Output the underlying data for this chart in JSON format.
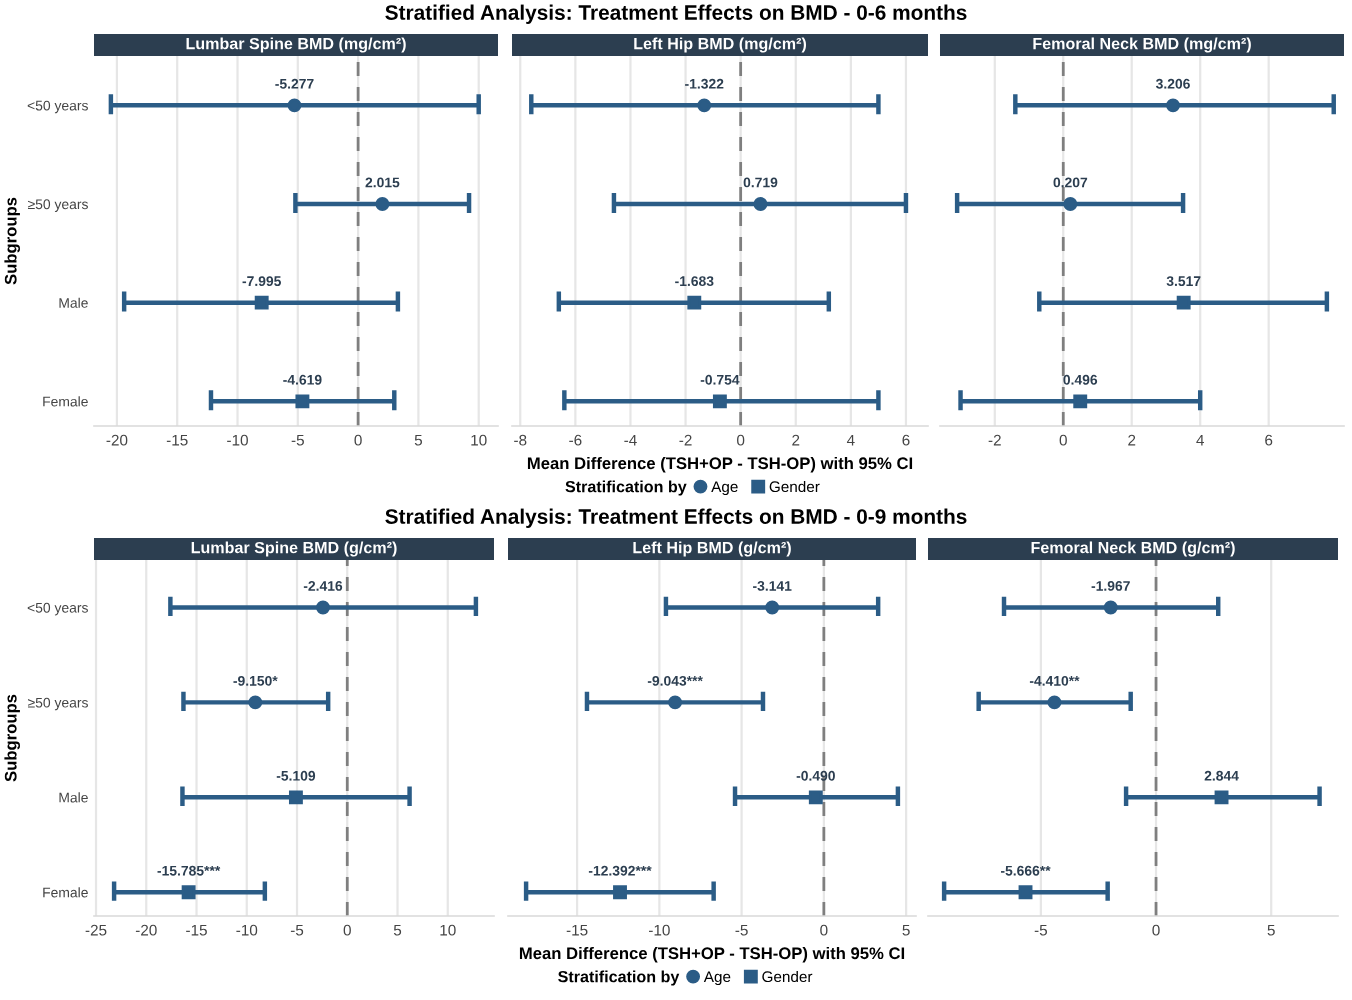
{
  "chart_data": [
    {
      "type": "scatter",
      "orientation": "horizontal",
      "subtitle": "Lumbar Spine BMD (mg/cm²)",
      "ylabel": "Subgroups",
      "categories": [
        "<50 years",
        "≥50 years",
        "Male",
        "Female"
      ],
      "xlim": [
        -21.9,
        11.6
      ],
      "xticks": [
        -20,
        -15,
        -10,
        -5,
        0,
        5,
        10
      ],
      "grid": "x",
      "ref_lines": [
        {
          "axis": "x",
          "value": 0,
          "color": "#7f7f7f",
          "line_style": "dashed"
        }
      ],
      "series": [
        {
          "color": "#2b5c86",
          "marker": "circle",
          "values": [
            -5.277,
            2.015,
            null,
            null
          ],
          "errors": [
            [
              -20.5,
              10.0
            ],
            [
              -5.2,
              9.2
            ],
            null,
            null
          ],
          "value_labels": [
            "-5.277",
            "2.015",
            null,
            null
          ]
        },
        {
          "color": "#2b5c86",
          "marker": "square",
          "values": [
            null,
            null,
            -7.995,
            -4.619
          ],
          "errors": [
            null,
            null,
            [
              -19.4,
              3.3
            ],
            [
              -12.2,
              3.0
            ]
          ],
          "value_labels": [
            null,
            null,
            "-7.995",
            "-4.619"
          ]
        }
      ]
    },
    {
      "type": "scatter",
      "orientation": "horizontal",
      "title": "Stratified Analysis: Treatment Effects on BMD - 0-6 months",
      "subtitle": "Left Hip BMD (mg/cm²)",
      "xlabel": "Mean Difference (TSH+OP - TSH-OP) with 95% CI",
      "legend": "bottom",
      "legend_title": "Stratification by",
      "tick_labels": "x",
      "categories": [
        null,
        null,
        null,
        null
      ],
      "xlim": [
        -8.3,
        6.8
      ],
      "xticks": [
        -8,
        -6,
        -4,
        -2,
        0,
        2,
        4,
        6
      ],
      "grid": "x",
      "ref_lines": [
        {
          "axis": "x",
          "value": 0,
          "color": "#7f7f7f",
          "line_style": "dashed"
        }
      ],
      "series": [
        {
          "name": "Age",
          "color": "#2b5c86",
          "marker": "circle",
          "values": [
            -1.322,
            0.719,
            null,
            null
          ],
          "errors": [
            [
              -7.6,
              5.0
            ],
            [
              -4.6,
              6.0
            ],
            null,
            null
          ],
          "value_labels": [
            "-1.322",
            "0.719",
            null,
            null
          ]
        },
        {
          "name": "Gender",
          "color": "#2b5c86",
          "marker": "square",
          "values": [
            null,
            null,
            -1.683,
            -0.754
          ],
          "errors": [
            null,
            null,
            [
              -6.6,
              3.2
            ],
            [
              -6.4,
              5.0
            ]
          ],
          "value_labels": [
            null,
            null,
            "-1.683",
            "-0.754"
          ]
        }
      ]
    },
    {
      "type": "scatter",
      "orientation": "horizontal",
      "subtitle": "Femoral Neck BMD (mg/cm²)",
      "tick_labels": "x",
      "categories": [
        null,
        null,
        null,
        null
      ],
      "xlim": [
        -3.6,
        8.2
      ],
      "xticks": [
        -2,
        0,
        2,
        4,
        6
      ],
      "grid": "x",
      "ref_lines": [
        {
          "axis": "x",
          "value": 0,
          "color": "#7f7f7f",
          "line_style": "dashed"
        }
      ],
      "series": [
        {
          "color": "#2b5c86",
          "marker": "circle",
          "values": [
            3.206,
            0.207,
            null,
            null
          ],
          "errors": [
            [
              -1.4,
              7.9
            ],
            [
              -3.1,
              3.5
            ],
            null,
            null
          ],
          "value_labels": [
            "3.206",
            "0.207",
            null,
            null
          ]
        },
        {
          "color": "#2b5c86",
          "marker": "square",
          "values": [
            null,
            null,
            3.517,
            0.496
          ],
          "errors": [
            null,
            null,
            [
              -0.7,
              7.7
            ],
            [
              -3.0,
              4.0
            ]
          ],
          "value_labels": [
            null,
            null,
            "3.517",
            "0.496"
          ]
        }
      ]
    },
    {
      "type": "scatter",
      "orientation": "horizontal",
      "subtitle": "Lumbar Spine BMD (g/cm²)",
      "ylabel": "Subgroups",
      "categories": [
        "<50 years",
        "≥50 years",
        "Male",
        "Female"
      ],
      "xlim": [
        -25.2,
        14.6
      ],
      "xticks": [
        -25,
        -20,
        -15,
        -10,
        -5,
        0,
        5,
        10
      ],
      "grid": "x",
      "ref_lines": [
        {
          "axis": "x",
          "value": 0,
          "color": "#7f7f7f",
          "line_style": "dashed"
        }
      ],
      "series": [
        {
          "color": "#2b5c86",
          "marker": "circle",
          "values": [
            -2.416,
            -9.15,
            null,
            null
          ],
          "errors": [
            [
              -17.6,
              12.8
            ],
            [
              -16.3,
              -1.9
            ],
            null,
            null
          ],
          "value_labels": [
            "-2.416",
            "-9.150*",
            null,
            null
          ]
        },
        {
          "color": "#2b5c86",
          "marker": "square",
          "values": [
            null,
            null,
            -5.109,
            -15.785
          ],
          "errors": [
            null,
            null,
            [
              -16.4,
              6.2
            ],
            [
              -23.2,
              -8.2
            ]
          ],
          "value_labels": [
            null,
            null,
            "-5.109",
            "-15.785***"
          ]
        }
      ]
    },
    {
      "type": "scatter",
      "orientation": "horizontal",
      "title": "Stratified Analysis: Treatment Effects on BMD - 0-9 months",
      "subtitle": "Left Hip BMD (g/cm²)",
      "xlabel": "Mean Difference (TSH+OP - TSH-OP) with 95% CI",
      "legend": "bottom",
      "legend_title": "Stratification by",
      "tick_labels": "x",
      "categories": [
        null,
        null,
        null,
        null
      ],
      "xlim": [
        -19.2,
        5.6
      ],
      "xticks": [
        -15,
        -10,
        -5,
        0,
        5
      ],
      "grid": "x",
      "ref_lines": [
        {
          "axis": "x",
          "value": 0,
          "color": "#7f7f7f",
          "line_style": "dashed"
        }
      ],
      "series": [
        {
          "name": "Age",
          "color": "#2b5c86",
          "marker": "circle",
          "values": [
            -3.141,
            -9.043,
            null,
            null
          ],
          "errors": [
            [
              -9.6,
              3.3
            ],
            [
              -14.4,
              -3.7
            ],
            null,
            null
          ],
          "value_labels": [
            "-3.141",
            "-9.043***",
            null,
            null
          ]
        },
        {
          "name": "Gender",
          "color": "#2b5c86",
          "marker": "square",
          "values": [
            null,
            null,
            -0.49,
            -12.392
          ],
          "errors": [
            null,
            null,
            [
              -5.4,
              4.5
            ],
            [
              -18.1,
              -6.7
            ]
          ],
          "value_labels": [
            null,
            null,
            "-0.490",
            "-12.392***"
          ]
        }
      ]
    },
    {
      "type": "scatter",
      "orientation": "horizontal",
      "subtitle": "Femoral Neck BMD (g/cm²)",
      "tick_labels": "x",
      "categories": [
        null,
        null,
        null,
        null
      ],
      "xlim": [
        -9.9,
        7.9
      ],
      "xticks": [
        -5,
        0,
        5
      ],
      "grid": "x",
      "ref_lines": [
        {
          "axis": "x",
          "value": 0,
          "color": "#7f7f7f",
          "line_style": "dashed"
        }
      ],
      "series": [
        {
          "color": "#2b5c86",
          "marker": "circle",
          "values": [
            -1.967,
            -4.41,
            null,
            null
          ],
          "errors": [
            [
              -6.6,
              2.7
            ],
            [
              -7.7,
              -1.1
            ],
            null,
            null
          ],
          "value_labels": [
            "-1.967",
            "-4.410**",
            null,
            null
          ]
        },
        {
          "color": "#2b5c86",
          "marker": "square",
          "values": [
            null,
            null,
            2.844,
            -5.666
          ],
          "errors": [
            null,
            null,
            [
              -1.3,
              7.1
            ],
            [
              -9.2,
              -2.1
            ]
          ],
          "value_labels": [
            null,
            null,
            "2.844",
            "-5.666**"
          ]
        }
      ]
    }
  ]
}
